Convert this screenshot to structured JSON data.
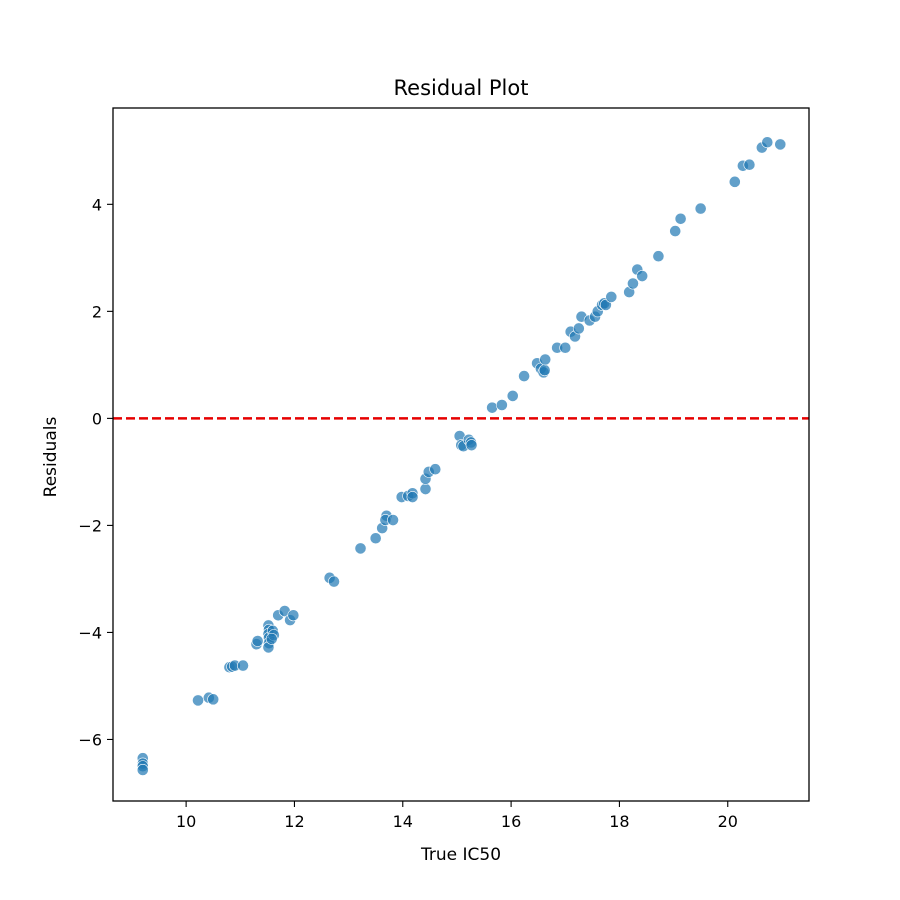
{
  "chart_data": {
    "type": "scatter",
    "title": "Residual Plot",
    "xlabel": "True IC50",
    "ylabel": "Residuals",
    "xlim": [
      8.65,
      21.5
    ],
    "ylim": [
      -7.15,
      5.8
    ],
    "xticks": [
      10,
      12,
      14,
      16,
      18,
      20
    ],
    "yticks": [
      -6,
      -4,
      -2,
      0,
      2,
      4
    ],
    "xtick_labels": [
      "10",
      "12",
      "14",
      "16",
      "18",
      "20"
    ],
    "ytick_labels": [
      "−6",
      "−4",
      "−2",
      "0",
      "2",
      "4"
    ],
    "grid": false,
    "legend": "none",
    "point_color": "#1f77b4",
    "reference_line": {
      "y": 0,
      "color": "#e60000",
      "style": "dashed"
    },
    "points": [
      {
        "x": 9.2,
        "y": -6.35
      },
      {
        "x": 9.2,
        "y": -6.45
      },
      {
        "x": 9.2,
        "y": -6.5
      },
      {
        "x": 9.2,
        "y": -6.57
      },
      {
        "x": 10.22,
        "y": -5.27
      },
      {
        "x": 10.42,
        "y": -5.22
      },
      {
        "x": 10.5,
        "y": -5.25
      },
      {
        "x": 10.8,
        "y": -4.65
      },
      {
        "x": 10.85,
        "y": -4.64
      },
      {
        "x": 10.9,
        "y": -4.62
      },
      {
        "x": 11.05,
        "y": -4.62
      },
      {
        "x": 11.3,
        "y": -4.22
      },
      {
        "x": 11.32,
        "y": -4.16
      },
      {
        "x": 11.52,
        "y": -3.87
      },
      {
        "x": 11.53,
        "y": -3.95
      },
      {
        "x": 11.52,
        "y": -4.03
      },
      {
        "x": 11.53,
        "y": -4.1
      },
      {
        "x": 11.53,
        "y": -4.2
      },
      {
        "x": 11.52,
        "y": -4.28
      },
      {
        "x": 11.6,
        "y": -3.97
      },
      {
        "x": 11.62,
        "y": -4.05
      },
      {
        "x": 11.58,
        "y": -4.12
      },
      {
        "x": 11.7,
        "y": -3.68
      },
      {
        "x": 11.82,
        "y": -3.6
      },
      {
        "x": 11.92,
        "y": -3.77
      },
      {
        "x": 11.98,
        "y": -3.68
      },
      {
        "x": 12.65,
        "y": -2.98
      },
      {
        "x": 12.73,
        "y": -3.05
      },
      {
        "x": 13.22,
        "y": -2.43
      },
      {
        "x": 13.5,
        "y": -2.24
      },
      {
        "x": 13.62,
        "y": -2.05
      },
      {
        "x": 13.7,
        "y": -1.82
      },
      {
        "x": 13.68,
        "y": -1.9
      },
      {
        "x": 13.82,
        "y": -1.9
      },
      {
        "x": 13.98,
        "y": -1.47
      },
      {
        "x": 14.1,
        "y": -1.45
      },
      {
        "x": 14.18,
        "y": -1.4
      },
      {
        "x": 14.18,
        "y": -1.47
      },
      {
        "x": 14.42,
        "y": -1.32
      },
      {
        "x": 14.42,
        "y": -1.13
      },
      {
        "x": 14.48,
        "y": -1.0
      },
      {
        "x": 14.6,
        "y": -0.95
      },
      {
        "x": 15.05,
        "y": -0.33
      },
      {
        "x": 15.08,
        "y": -0.5
      },
      {
        "x": 15.12,
        "y": -0.52
      },
      {
        "x": 15.22,
        "y": -0.4
      },
      {
        "x": 15.26,
        "y": -0.45
      },
      {
        "x": 15.27,
        "y": -0.5
      },
      {
        "x": 15.65,
        "y": 0.2
      },
      {
        "x": 15.83,
        "y": 0.25
      },
      {
        "x": 16.03,
        "y": 0.42
      },
      {
        "x": 16.24,
        "y": 0.79
      },
      {
        "x": 16.48,
        "y": 1.03
      },
      {
        "x": 16.55,
        "y": 0.93
      },
      {
        "x": 16.6,
        "y": 0.86
      },
      {
        "x": 16.62,
        "y": 0.9
      },
      {
        "x": 16.63,
        "y": 1.1
      },
      {
        "x": 16.85,
        "y": 1.32
      },
      {
        "x": 17.0,
        "y": 1.32
      },
      {
        "x": 17.1,
        "y": 1.62
      },
      {
        "x": 17.18,
        "y": 1.53
      },
      {
        "x": 17.25,
        "y": 1.68
      },
      {
        "x": 17.3,
        "y": 1.9
      },
      {
        "x": 17.45,
        "y": 1.83
      },
      {
        "x": 17.55,
        "y": 1.9
      },
      {
        "x": 17.6,
        "y": 2.0
      },
      {
        "x": 17.68,
        "y": 2.12
      },
      {
        "x": 17.72,
        "y": 2.15
      },
      {
        "x": 17.75,
        "y": 2.12
      },
      {
        "x": 17.85,
        "y": 2.27
      },
      {
        "x": 18.18,
        "y": 2.36
      },
      {
        "x": 18.25,
        "y": 2.52
      },
      {
        "x": 18.33,
        "y": 2.78
      },
      {
        "x": 18.42,
        "y": 2.66
      },
      {
        "x": 18.72,
        "y": 3.03
      },
      {
        "x": 19.03,
        "y": 3.5
      },
      {
        "x": 19.13,
        "y": 3.73
      },
      {
        "x": 19.5,
        "y": 3.92
      },
      {
        "x": 20.13,
        "y": 4.42
      },
      {
        "x": 20.28,
        "y": 4.72
      },
      {
        "x": 20.4,
        "y": 4.74
      },
      {
        "x": 20.63,
        "y": 5.06
      },
      {
        "x": 20.73,
        "y": 5.16
      },
      {
        "x": 20.97,
        "y": 5.12
      }
    ]
  }
}
